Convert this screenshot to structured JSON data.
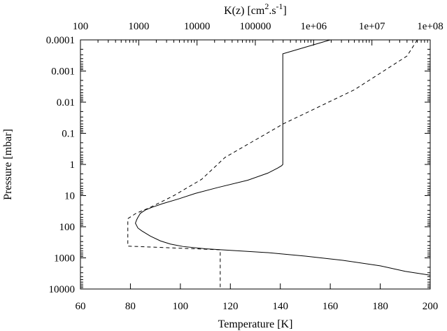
{
  "chart_data": {
    "type": "line",
    "xlabel_bottom": "Temperature [K]",
    "xlabel_top": {
      "prefix": "K(z) [cm",
      "sup1": "2",
      "mid": ".s",
      "sup2": "-1",
      "suffix": "]"
    },
    "ylabel": "Pressure [mbar]",
    "x_bottom": {
      "range": [
        60,
        200
      ],
      "ticks": [
        60,
        80,
        100,
        120,
        140,
        160,
        180,
        200
      ],
      "tick_labels": [
        "60",
        "80",
        "100",
        "120",
        "140",
        "160",
        "180",
        "200"
      ]
    },
    "x_top": {
      "scale": "log",
      "range": [
        100,
        100000000
      ],
      "ticks": [
        100,
        1000,
        10000,
        100000,
        1000000,
        10000000,
        100000000
      ],
      "tick_labels": [
        "100",
        "1000",
        "10000",
        "100000",
        "1e+06",
        "1e+07",
        "1e+08"
      ]
    },
    "y": {
      "scale": "log",
      "inverted": true,
      "range": [
        0.0001,
        10000
      ],
      "ticks": [
        0.0001,
        0.001,
        0.01,
        0.1,
        1,
        10,
        100,
        1000,
        10000
      ],
      "tick_labels": [
        "0.0001",
        "0.001",
        "0.01",
        "0.1",
        "1",
        "10",
        "100",
        "1000",
        "10000"
      ]
    },
    "grid": false,
    "series": [
      {
        "style": "solid",
        "x_axis": "bottom",
        "unit": "K",
        "points": [
          [
            160,
            0.0001
          ],
          [
            141,
            0.00028
          ],
          [
            141,
            1.0
          ],
          [
            140.5,
            1.1
          ],
          [
            139,
            1.3
          ],
          [
            135,
            1.9
          ],
          [
            127,
            3.2
          ],
          [
            115,
            5.5
          ],
          [
            106,
            8.5
          ],
          [
            99,
            13
          ],
          [
            93,
            18
          ],
          [
            88.5,
            24
          ],
          [
            86,
            29
          ],
          [
            84,
            37
          ],
          [
            83,
            50
          ],
          [
            82.5,
            60
          ],
          [
            82,
            77
          ],
          [
            83,
            110
          ],
          [
            84.5,
            135
          ],
          [
            88,
            200
          ],
          [
            92,
            285
          ],
          [
            96,
            360
          ],
          [
            101,
            430
          ],
          [
            110,
            510
          ],
          [
            135,
            680
          ],
          [
            150,
            880
          ],
          [
            165,
            1200
          ],
          [
            180,
            1800
          ],
          [
            190,
            2700
          ],
          [
            200,
            3600
          ]
        ]
      },
      {
        "style": "dashed",
        "x_axis": "top",
        "unit": "cm2.s-1",
        "points": [
          [
            60000000,
            0.0001
          ],
          [
            40000000,
            0.00033
          ],
          [
            5000000,
            0.004
          ],
          [
            300000,
            0.05
          ],
          [
            30000,
            0.6
          ],
          [
            12000,
            3
          ],
          [
            4000,
            10
          ],
          [
            1500,
            25
          ],
          [
            900,
            37
          ],
          [
            650,
            55
          ],
          [
            650,
            420
          ],
          [
            25000,
            550
          ],
          [
            25000,
            10000
          ]
        ]
      }
    ]
  }
}
